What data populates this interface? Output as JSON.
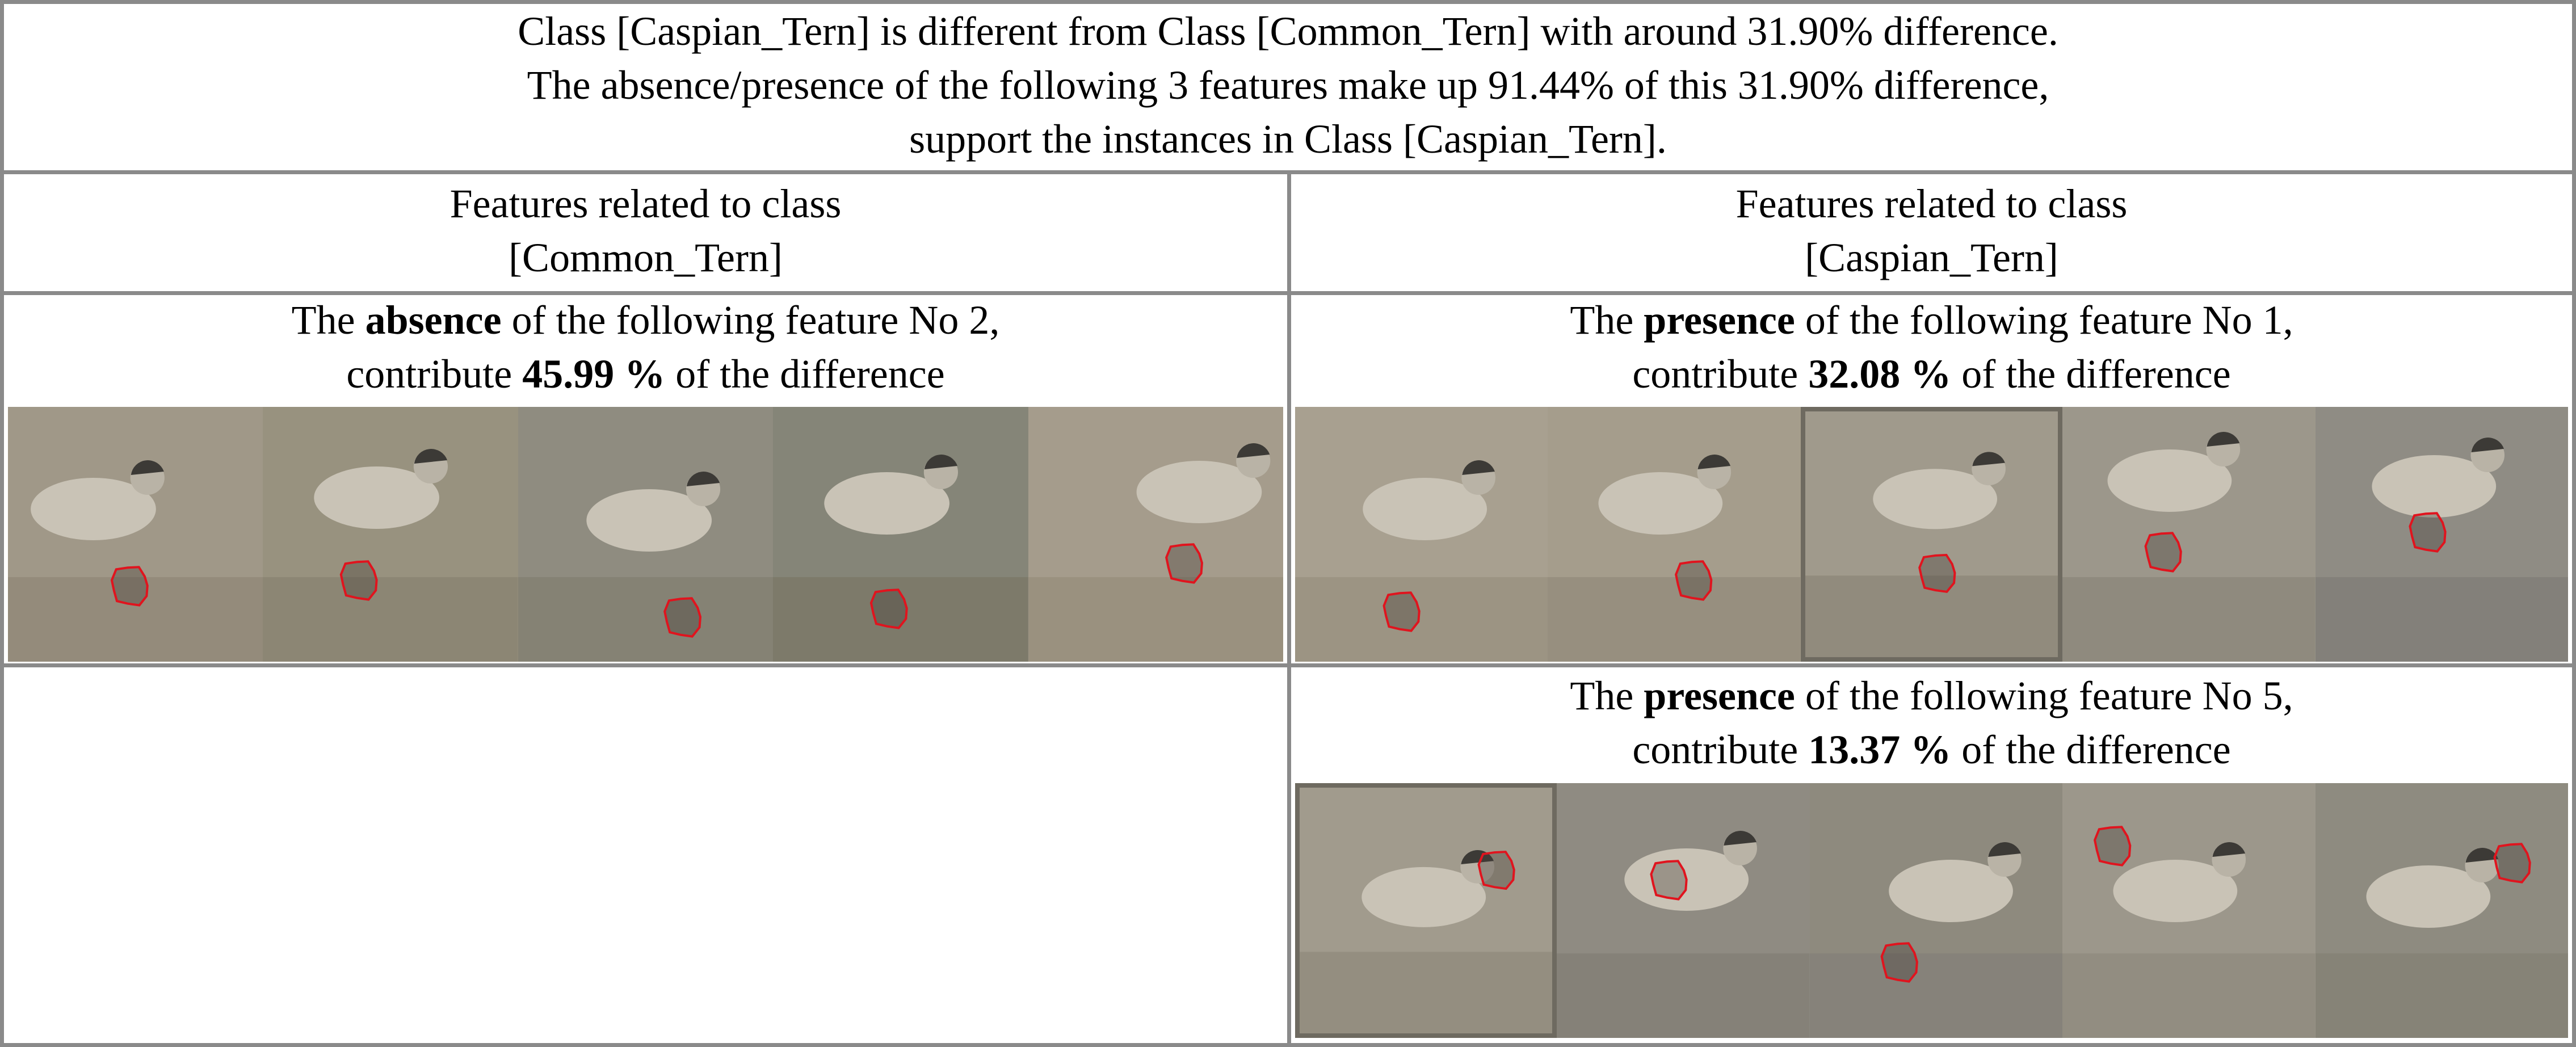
{
  "header": {
    "line1": "Class [Caspian_Tern] is different from Class [Common_Tern] with around 31.90% difference.",
    "line2": "The absence/presence of the following 3 features make up 91.44% of this 31.90% difference,",
    "line3": "support the instances in Class [Caspian_Tern]."
  },
  "columns": {
    "left": {
      "line1": "Features related to class",
      "line2": "[Common_Tern]"
    },
    "right": {
      "line1": "Features related to class",
      "line2": "[Caspian_Tern]"
    }
  },
  "features": [
    {
      "prefix": "The ",
      "kind": "absence",
      "suffix": " of the following feature No 2,",
      "contrib_prefix": "contribute ",
      "percent": "45.99 %",
      "contrib_suffix": " of the difference",
      "image_count": 5
    },
    {
      "prefix": "The ",
      "kind": "presence",
      "suffix": " of the following feature No 1,",
      "contrib_prefix": "contribute ",
      "percent": "32.08 %",
      "contrib_suffix": " of the difference",
      "image_count": 5
    },
    {
      "prefix": "The ",
      "kind": "presence",
      "suffix": " of the following feature No 5,",
      "contrib_prefix": "contribute ",
      "percent": "13.37 %",
      "contrib_suffix": " of the difference",
      "image_count": 5
    }
  ],
  "colors": {
    "border": "#8a8a8a",
    "highlight": "#e0141e"
  }
}
